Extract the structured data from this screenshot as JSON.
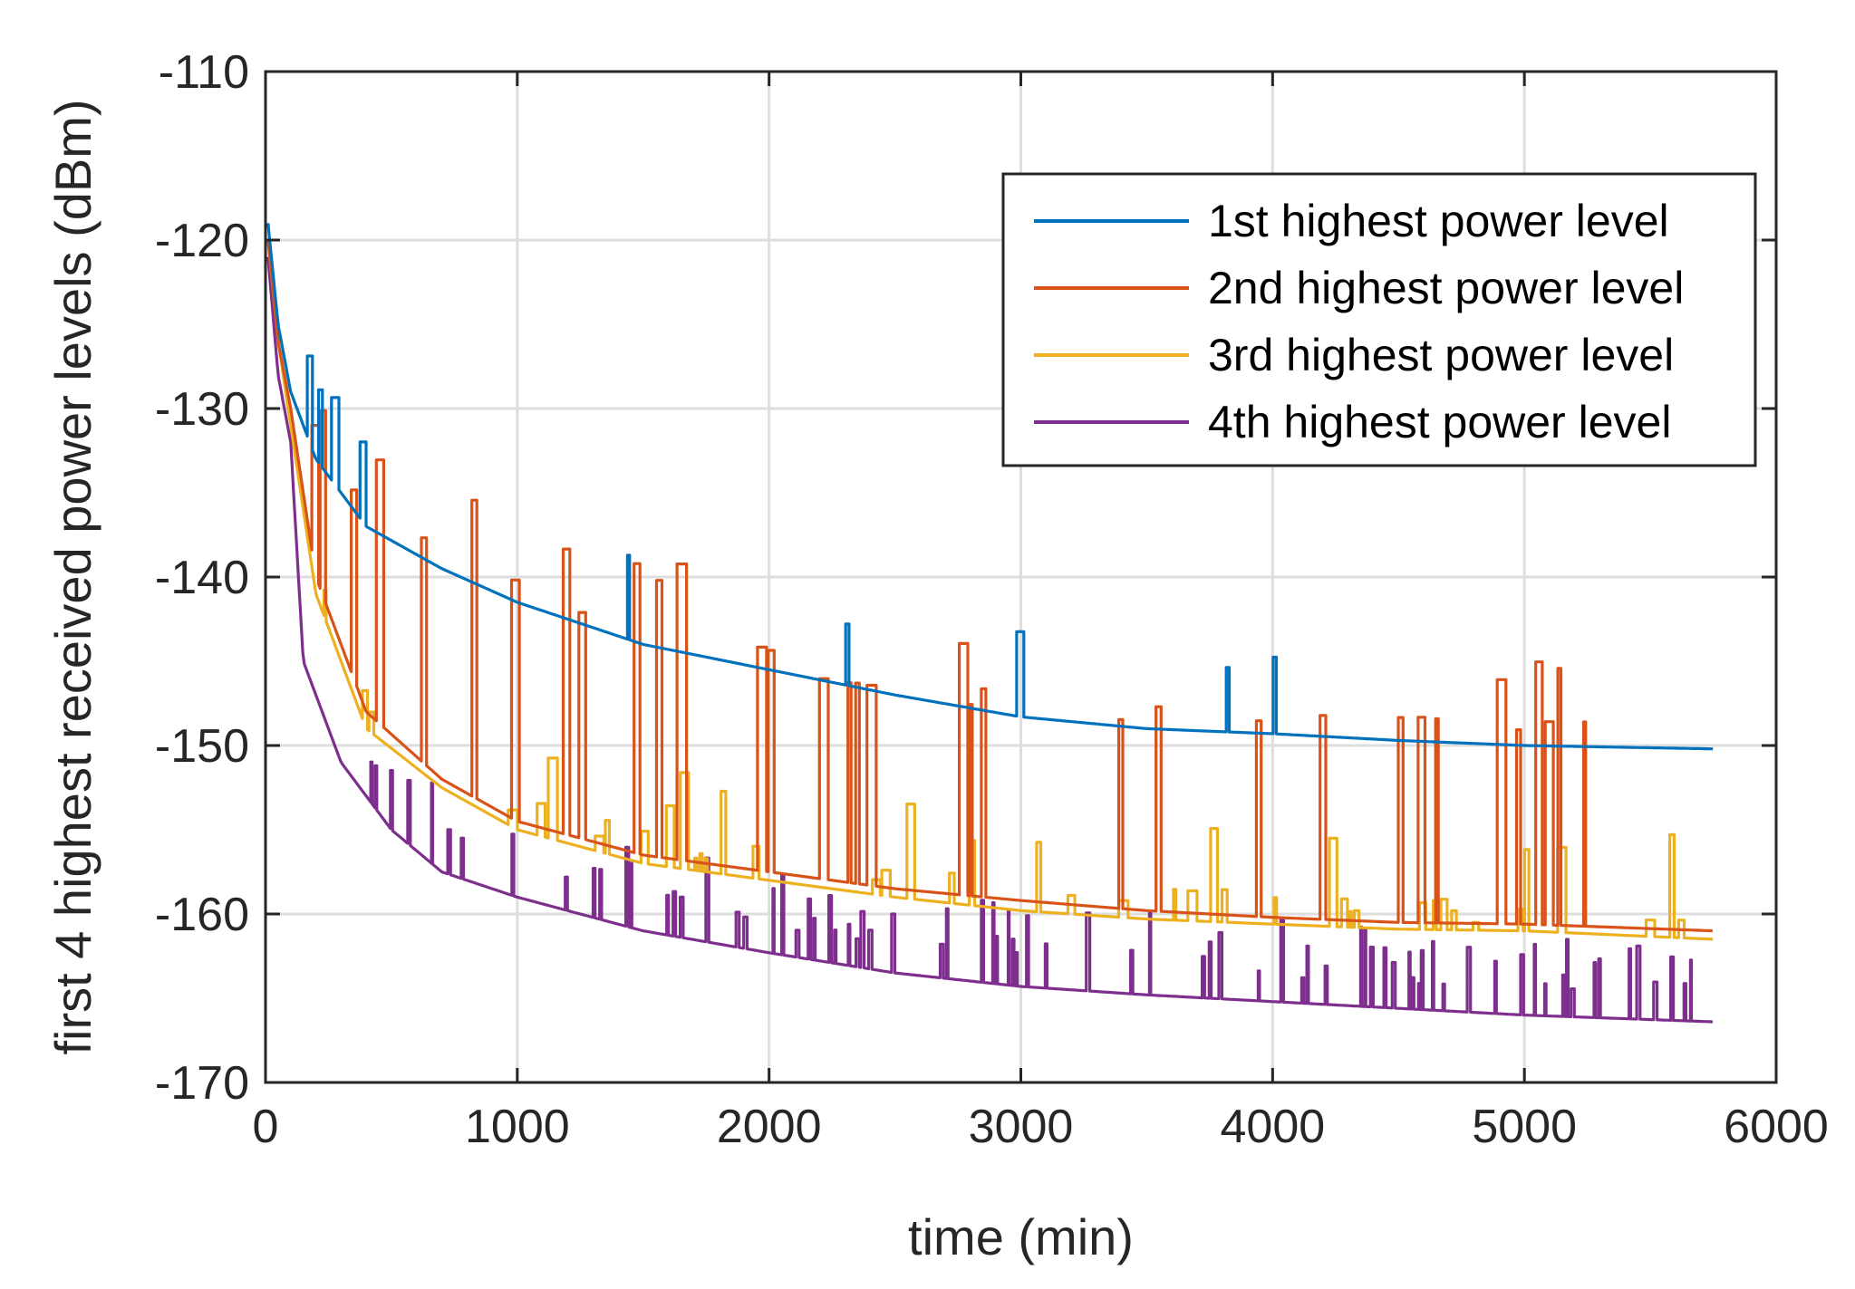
{
  "chart_data": {
    "type": "line",
    "title": "",
    "xlabel": "time (min)",
    "ylabel": "first 4 highest received power levels (dBm)",
    "xlim": [
      0,
      6000
    ],
    "ylim": [
      -170,
      -110
    ],
    "xticks": [
      0,
      1000,
      2000,
      3000,
      4000,
      5000,
      6000
    ],
    "yticks": [
      -110,
      -120,
      -130,
      -140,
      -150,
      -160,
      -170
    ],
    "xtick_labels": [
      "0",
      "1000",
      "2000",
      "3000",
      "4000",
      "5000",
      "6000"
    ],
    "ytick_labels": [
      "-110",
      "-120",
      "-130",
      "-140",
      "-150",
      "-160",
      "-170"
    ],
    "grid": true,
    "legend_position": "top-right",
    "x_end": 5750,
    "series": [
      {
        "name": "1st highest power level",
        "color": "#0072BD",
        "baseline": [
          [
            10,
            -119
          ],
          [
            50,
            -125
          ],
          [
            100,
            -129
          ],
          [
            200,
            -133
          ],
          [
            400,
            -137
          ],
          [
            700,
            -139.5
          ],
          [
            1000,
            -141.5
          ],
          [
            1500,
            -144
          ],
          [
            2000,
            -145.5
          ],
          [
            2500,
            -147
          ],
          [
            3000,
            -148.3
          ],
          [
            3500,
            -149
          ],
          [
            4000,
            -149.3
          ],
          [
            4500,
            -149.7
          ],
          [
            5000,
            -150
          ],
          [
            5750,
            -150.2
          ]
        ]
      },
      {
        "name": "2nd highest power level",
        "color": "#D95319",
        "baseline": [
          [
            10,
            -120
          ],
          [
            50,
            -126
          ],
          [
            100,
            -130
          ],
          [
            200,
            -140
          ],
          [
            400,
            -148
          ],
          [
            700,
            -152
          ],
          [
            1000,
            -154.5
          ],
          [
            1500,
            -156.5
          ],
          [
            2000,
            -157.5
          ],
          [
            2500,
            -158.5
          ],
          [
            3000,
            -159.2
          ],
          [
            3500,
            -159.8
          ],
          [
            4000,
            -160.2
          ],
          [
            4500,
            -160.5
          ],
          [
            5000,
            -160.6
          ],
          [
            5750,
            -161
          ]
        ]
      },
      {
        "name": "3rd highest power level",
        "color": "#EDB120",
        "baseline": [
          [
            10,
            -120
          ],
          [
            50,
            -126
          ],
          [
            100,
            -131
          ],
          [
            200,
            -141
          ],
          [
            400,
            -149
          ],
          [
            700,
            -152.5
          ],
          [
            1000,
            -155
          ],
          [
            1500,
            -157
          ],
          [
            2000,
            -158
          ],
          [
            2500,
            -159
          ],
          [
            3000,
            -159.8
          ],
          [
            3500,
            -160.3
          ],
          [
            4000,
            -160.6
          ],
          [
            4500,
            -160.9
          ],
          [
            5000,
            -161
          ],
          [
            5750,
            -161.5
          ]
        ]
      },
      {
        "name": "4th highest power level",
        "color": "#7E2F8E",
        "baseline": [
          [
            10,
            -121
          ],
          [
            50,
            -128
          ],
          [
            100,
            -132
          ],
          [
            150,
            -145
          ],
          [
            300,
            -151
          ],
          [
            500,
            -155
          ],
          [
            700,
            -157.5
          ],
          [
            1000,
            -159
          ],
          [
            1500,
            -161
          ],
          [
            2000,
            -162.3
          ],
          [
            2500,
            -163.5
          ],
          [
            3000,
            -164.3
          ],
          [
            3500,
            -164.8
          ],
          [
            4000,
            -165.2
          ],
          [
            4500,
            -165.6
          ],
          [
            5000,
            -166
          ],
          [
            5750,
            -166.4
          ]
        ]
      }
    ]
  }
}
